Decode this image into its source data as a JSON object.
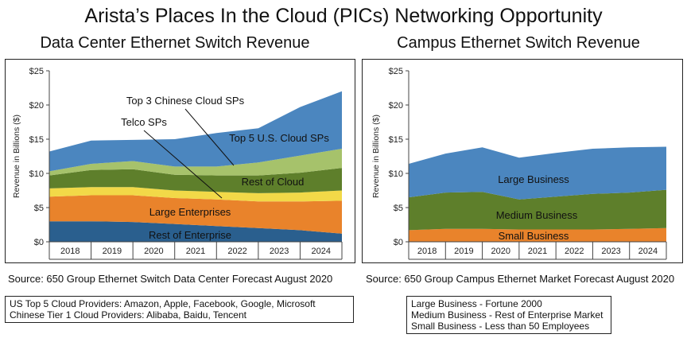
{
  "title": "Arista’s Places In the Cloud (PICs) Networking Opportunity",
  "chart_data": [
    {
      "id": "dc",
      "type": "area",
      "stacked": true,
      "title": "Data Center Ethernet Switch Revenue",
      "ylabel": "Revenue in Billions ($)",
      "xlabel": "",
      "ylim": [
        0,
        25
      ],
      "yticks": [
        "$0",
        "$5",
        "$10",
        "$15",
        "$20",
        "$25"
      ],
      "categories": [
        "2018",
        "2019",
        "2020",
        "2021",
        "2022",
        "2023",
        "2024"
      ],
      "x": [
        2017.5,
        2018.5,
        2019.5,
        2020.5,
        2021.5,
        2022.5,
        2023.5,
        2024.5
      ],
      "series": [
        {
          "name": "Rest of Enterprise",
          "color": "#2a5f8e",
          "values": [
            3.0,
            3.0,
            2.9,
            2.6,
            2.3,
            2.0,
            1.7,
            1.2
          ]
        },
        {
          "name": "Large Enterprises",
          "color": "#e9832b",
          "values": [
            3.6,
            3.8,
            3.9,
            3.8,
            3.9,
            3.9,
            4.2,
            4.8
          ]
        },
        {
          "name": "Telco SPs",
          "color": "#f2d948",
          "values": [
            1.2,
            1.2,
            1.2,
            1.1,
            1.1,
            1.2,
            1.3,
            1.5
          ]
        },
        {
          "name": "Rest of Cloud",
          "color": "#5e7f2b",
          "values": [
            1.9,
            2.5,
            2.6,
            2.3,
            2.4,
            2.6,
            2.9,
            3.3
          ]
        },
        {
          "name": "Top 3 Chinese Cloud SPs",
          "color": "#a6c26b",
          "values": [
            0.6,
            0.9,
            1.2,
            1.2,
            1.3,
            1.9,
            2.5,
            2.8
          ]
        },
        {
          "name": "Top 5 U.S. Cloud SPs",
          "color": "#4b86bf",
          "values": [
            2.9,
            3.4,
            3.1,
            4.0,
            4.9,
            5.0,
            7.1,
            8.4
          ]
        }
      ],
      "annotations": [
        {
          "text": "Top 3 Chinese Cloud SPs"
        },
        {
          "text": "Telco SPs"
        },
        {
          "text": "Top 5 U.S. Cloud SPs"
        },
        {
          "text": "Rest of Cloud"
        },
        {
          "text": "Large Enterprises"
        },
        {
          "text": "Rest of Enterprise"
        }
      ],
      "source": "Source: 650 Group Ethernet Switch Data Center Forecast August 2020",
      "notes": [
        "US Top 5 Cloud Providers: Amazon, Apple, Facebook, Google, Microsoft",
        "Chinese Tier 1 Cloud Providers: Alibaba, Baidu, Tencent"
      ]
    },
    {
      "id": "cp",
      "type": "area",
      "stacked": true,
      "title": "Campus Ethernet Switch Revenue",
      "ylabel": "Revenue in Billions ($)",
      "xlabel": "",
      "ylim": [
        0,
        25
      ],
      "yticks": [
        "$0",
        "$5",
        "$10",
        "$15",
        "$20",
        "$25"
      ],
      "categories": [
        "2018",
        "2019",
        "2020",
        "2021",
        "2022",
        "2023",
        "2024"
      ],
      "x": [
        2017.5,
        2018.5,
        2019.5,
        2020.5,
        2021.5,
        2022.5,
        2023.5,
        2024.5
      ],
      "series": [
        {
          "name": "Small Business",
          "color": "#e9832b",
          "values": [
            1.7,
            1.9,
            1.9,
            1.8,
            1.8,
            1.8,
            1.9,
            2.0
          ]
        },
        {
          "name": "Medium Business",
          "color": "#5e7f2b",
          "values": [
            4.8,
            5.3,
            5.4,
            4.4,
            4.8,
            5.2,
            5.3,
            5.6
          ]
        },
        {
          "name": "Large Business",
          "color": "#4b86bf",
          "values": [
            4.9,
            5.7,
            6.5,
            6.1,
            6.4,
            6.6,
            6.6,
            6.3
          ]
        }
      ],
      "annotations": [
        {
          "text": "Large Business"
        },
        {
          "text": "Medium Business"
        },
        {
          "text": "Small Business"
        }
      ],
      "source": "Source: 650 Group Campus Ethernet Market Forecast August 2020",
      "notes": [
        "Large Business - Fortune 2000",
        "Medium Business - Rest of Enterprise Market",
        "Small Business - Less than 50 Employees"
      ]
    }
  ]
}
